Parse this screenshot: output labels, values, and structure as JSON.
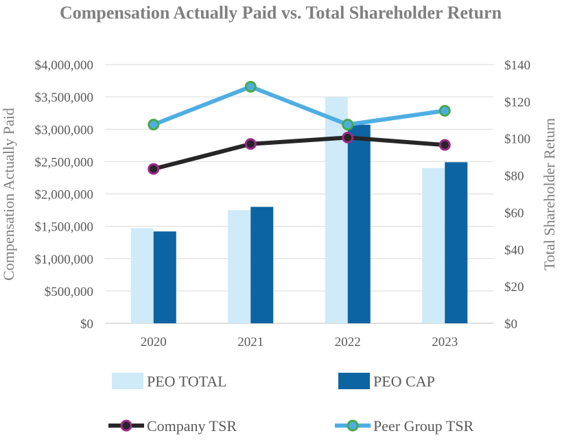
{
  "chart_data": {
    "type": "bar",
    "title": "Compensation Actually Paid vs. Total Shareholder Return",
    "categories": [
      "2020",
      "2021",
      "2022",
      "2023"
    ],
    "ylabel": "Compensation Actually Paid",
    "y2label": "Total Shareholder Return",
    "ylim": [
      0,
      4000000
    ],
    "y2lim": [
      0,
      140
    ],
    "yticks": [
      "$0",
      "$500,000",
      "$1,000,000",
      "$1,500,000",
      "$2,000,000",
      "$2,500,000",
      "$3,000,000",
      "$3,500,000",
      "$4,000,000"
    ],
    "y2ticks": [
      "$0",
      "$20",
      "$40",
      "$60",
      "$80",
      "$100",
      "$120",
      "$140"
    ],
    "series": [
      {
        "name": "PEO TOTAL",
        "kind": "bar",
        "axis": "left",
        "color": "#cfeaf8",
        "values": [
          1470000,
          1750000,
          3500000,
          2400000
        ]
      },
      {
        "name": "PEO CAP",
        "kind": "bar",
        "axis": "left",
        "color": "#0d64a2",
        "values": [
          1420000,
          1800000,
          3070000,
          2490000
        ]
      },
      {
        "name": "Company TSR",
        "kind": "line",
        "axis": "right",
        "color": "#262626",
        "marker_color": "#9c2a8a",
        "values": [
          83.5,
          97,
          100.5,
          96.5
        ]
      },
      {
        "name": "Peer Group TSR",
        "kind": "line",
        "axis": "right",
        "color": "#4eaee3",
        "marker_color": "#4aa84a",
        "values": [
          107.5,
          128,
          107.5,
          115
        ]
      }
    ],
    "grid": true,
    "legend": "bottom"
  }
}
